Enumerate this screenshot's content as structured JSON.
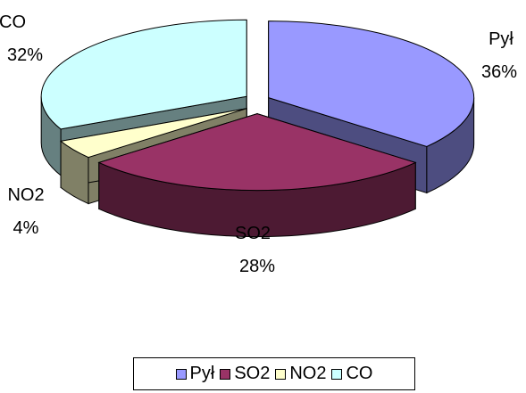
{
  "chart_data": {
    "type": "pie",
    "style": "3d-exploded",
    "title": "",
    "categories": [
      "Pył",
      "SO2",
      "NO2",
      "CO"
    ],
    "values": [
      36,
      28,
      4,
      32
    ],
    "percent_labels": [
      "36%",
      "28%",
      "4%",
      "32%"
    ],
    "colors": [
      "#9999ff",
      "#993366",
      "#ffffcc",
      "#ccffff"
    ],
    "side_colors": [
      "#4d4d80",
      "#4d1a33",
      "#808066",
      "#668080"
    ],
    "legend": {
      "position": "bottom",
      "items": [
        "Pył",
        "SO2",
        "NO2",
        "CO"
      ]
    }
  }
}
